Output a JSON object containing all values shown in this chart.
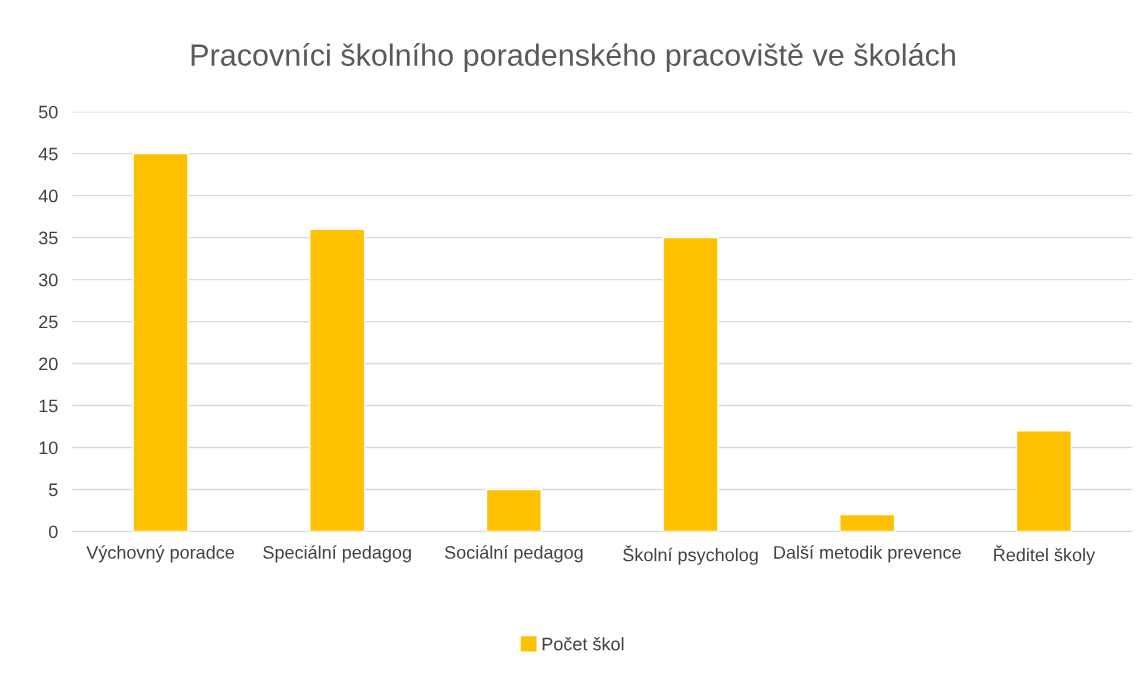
{
  "chart_data": {
    "type": "bar",
    "title": "Pracovníci školního poradenského pracoviště ve školách",
    "categories": [
      "Výchovný poradce",
      "Speciální pedagog",
      "Sociální pedagog",
      "Školní psycholog",
      "Další metodik prevence",
      "Ředitel školy"
    ],
    "series": [
      {
        "name": "Počet škol",
        "color": "#ffc000",
        "values": [
          45,
          36,
          5,
          35,
          2,
          12
        ]
      }
    ],
    "ylim": [
      0,
      50
    ],
    "yticks": [
      0,
      5,
      10,
      15,
      20,
      25,
      30,
      35,
      40,
      45,
      50
    ],
    "grid": "y",
    "legend": "bottom"
  }
}
